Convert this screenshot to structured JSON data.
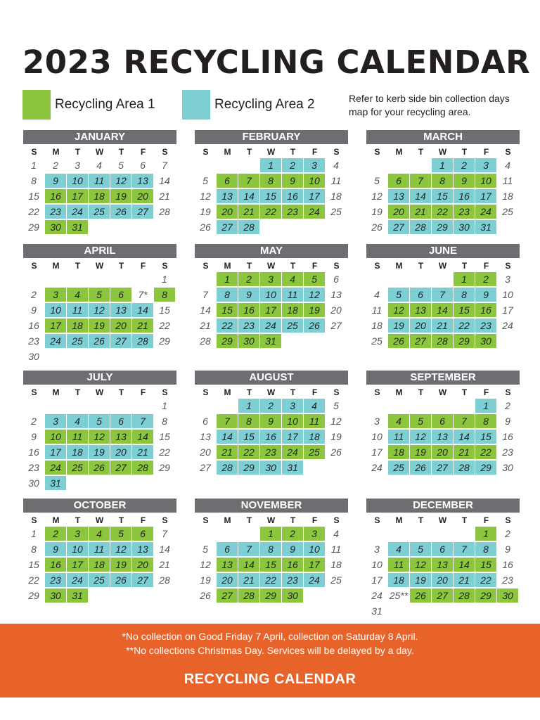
{
  "title": "2023 RECYCLING CALENDAR",
  "legend": {
    "area1": {
      "label": "Recycling Area 1",
      "color": "#8cc63f"
    },
    "area2": {
      "label": "Recycling Area 2",
      "color": "#7ecfd3"
    }
  },
  "note": "Refer to kerb side bin collection days map for your recycling area.",
  "weekdays": [
    "S",
    "M",
    "T",
    "W",
    "T",
    "F",
    "S"
  ],
  "months": [
    {
      "name": "JANUARY",
      "first": 0,
      "days": 31,
      "marks": {
        "1": "b",
        "2": "g",
        "3": "b",
        "4": "g",
        "5": "b"
      },
      "labels": {}
    },
    {
      "name": "FEBRUARY",
      "first": 3,
      "days": 28,
      "marks": {
        "0": "b",
        "1": "g",
        "2": "b",
        "3": "g",
        "4": "b"
      },
      "labels": {}
    },
    {
      "name": "MARCH",
      "first": 3,
      "days": 31,
      "marks": {
        "0": "b",
        "1": "g",
        "2": "b",
        "3": "g",
        "4": "b"
      },
      "labels": {}
    },
    {
      "name": "APRIL",
      "first": 6,
      "days": 30,
      "marks": {
        "1": "g",
        "2": "b",
        "3": "g",
        "4": "b"
      },
      "labels": {
        "7": "7*"
      },
      "noColor": [
        7
      ],
      "extra": {
        "8": "g"
      }
    },
    {
      "name": "MAY",
      "first": 1,
      "days": 31,
      "marks": {
        "0": "g",
        "1": "b",
        "2": "g",
        "3": "b",
        "4": "g"
      },
      "labels": {}
    },
    {
      "name": "JUNE",
      "first": 4,
      "days": 30,
      "marks": {
        "0": "g",
        "1": "b",
        "2": "g",
        "3": "b",
        "4": "g"
      },
      "labels": {}
    },
    {
      "name": "JULY",
      "first": 6,
      "days": 31,
      "marks": {
        "1": "b",
        "2": "g",
        "3": "b",
        "4": "g",
        "5": "b"
      },
      "labels": {}
    },
    {
      "name": "AUGUST",
      "first": 2,
      "days": 31,
      "marks": {
        "0": "b",
        "1": "g",
        "2": "b",
        "3": "g",
        "4": "b"
      },
      "labels": {}
    },
    {
      "name": "SEPTEMBER",
      "first": 5,
      "days": 30,
      "marks": {
        "0": "b",
        "1": "g",
        "2": "b",
        "3": "g",
        "4": "b"
      },
      "labels": {}
    },
    {
      "name": "OCTOBER",
      "first": 0,
      "days": 31,
      "marks": {
        "0": "g",
        "1": "b",
        "2": "g",
        "3": "b",
        "4": "g"
      },
      "labels": {}
    },
    {
      "name": "NOVEMBER",
      "first": 3,
      "days": 30,
      "marks": {
        "0": "g",
        "1": "b",
        "2": "g",
        "3": "b",
        "4": "g"
      },
      "labels": {}
    },
    {
      "name": "DECEMBER",
      "first": 5,
      "days": 31,
      "marks": {
        "0": "g",
        "1": "b",
        "2": "g",
        "3": "b",
        "4": "g"
      },
      "labels": {
        "25": "25**"
      },
      "noColor": [
        25
      ],
      "extra": {
        "30": "g"
      }
    }
  ],
  "footer": {
    "line1": "*No collection on Good Friday 7 April, collection on Saturday 8 April.",
    "line2": "**No collections Christmas Day. Services will be delayed by a day.",
    "title": "RECYCLING CALENDAR"
  }
}
